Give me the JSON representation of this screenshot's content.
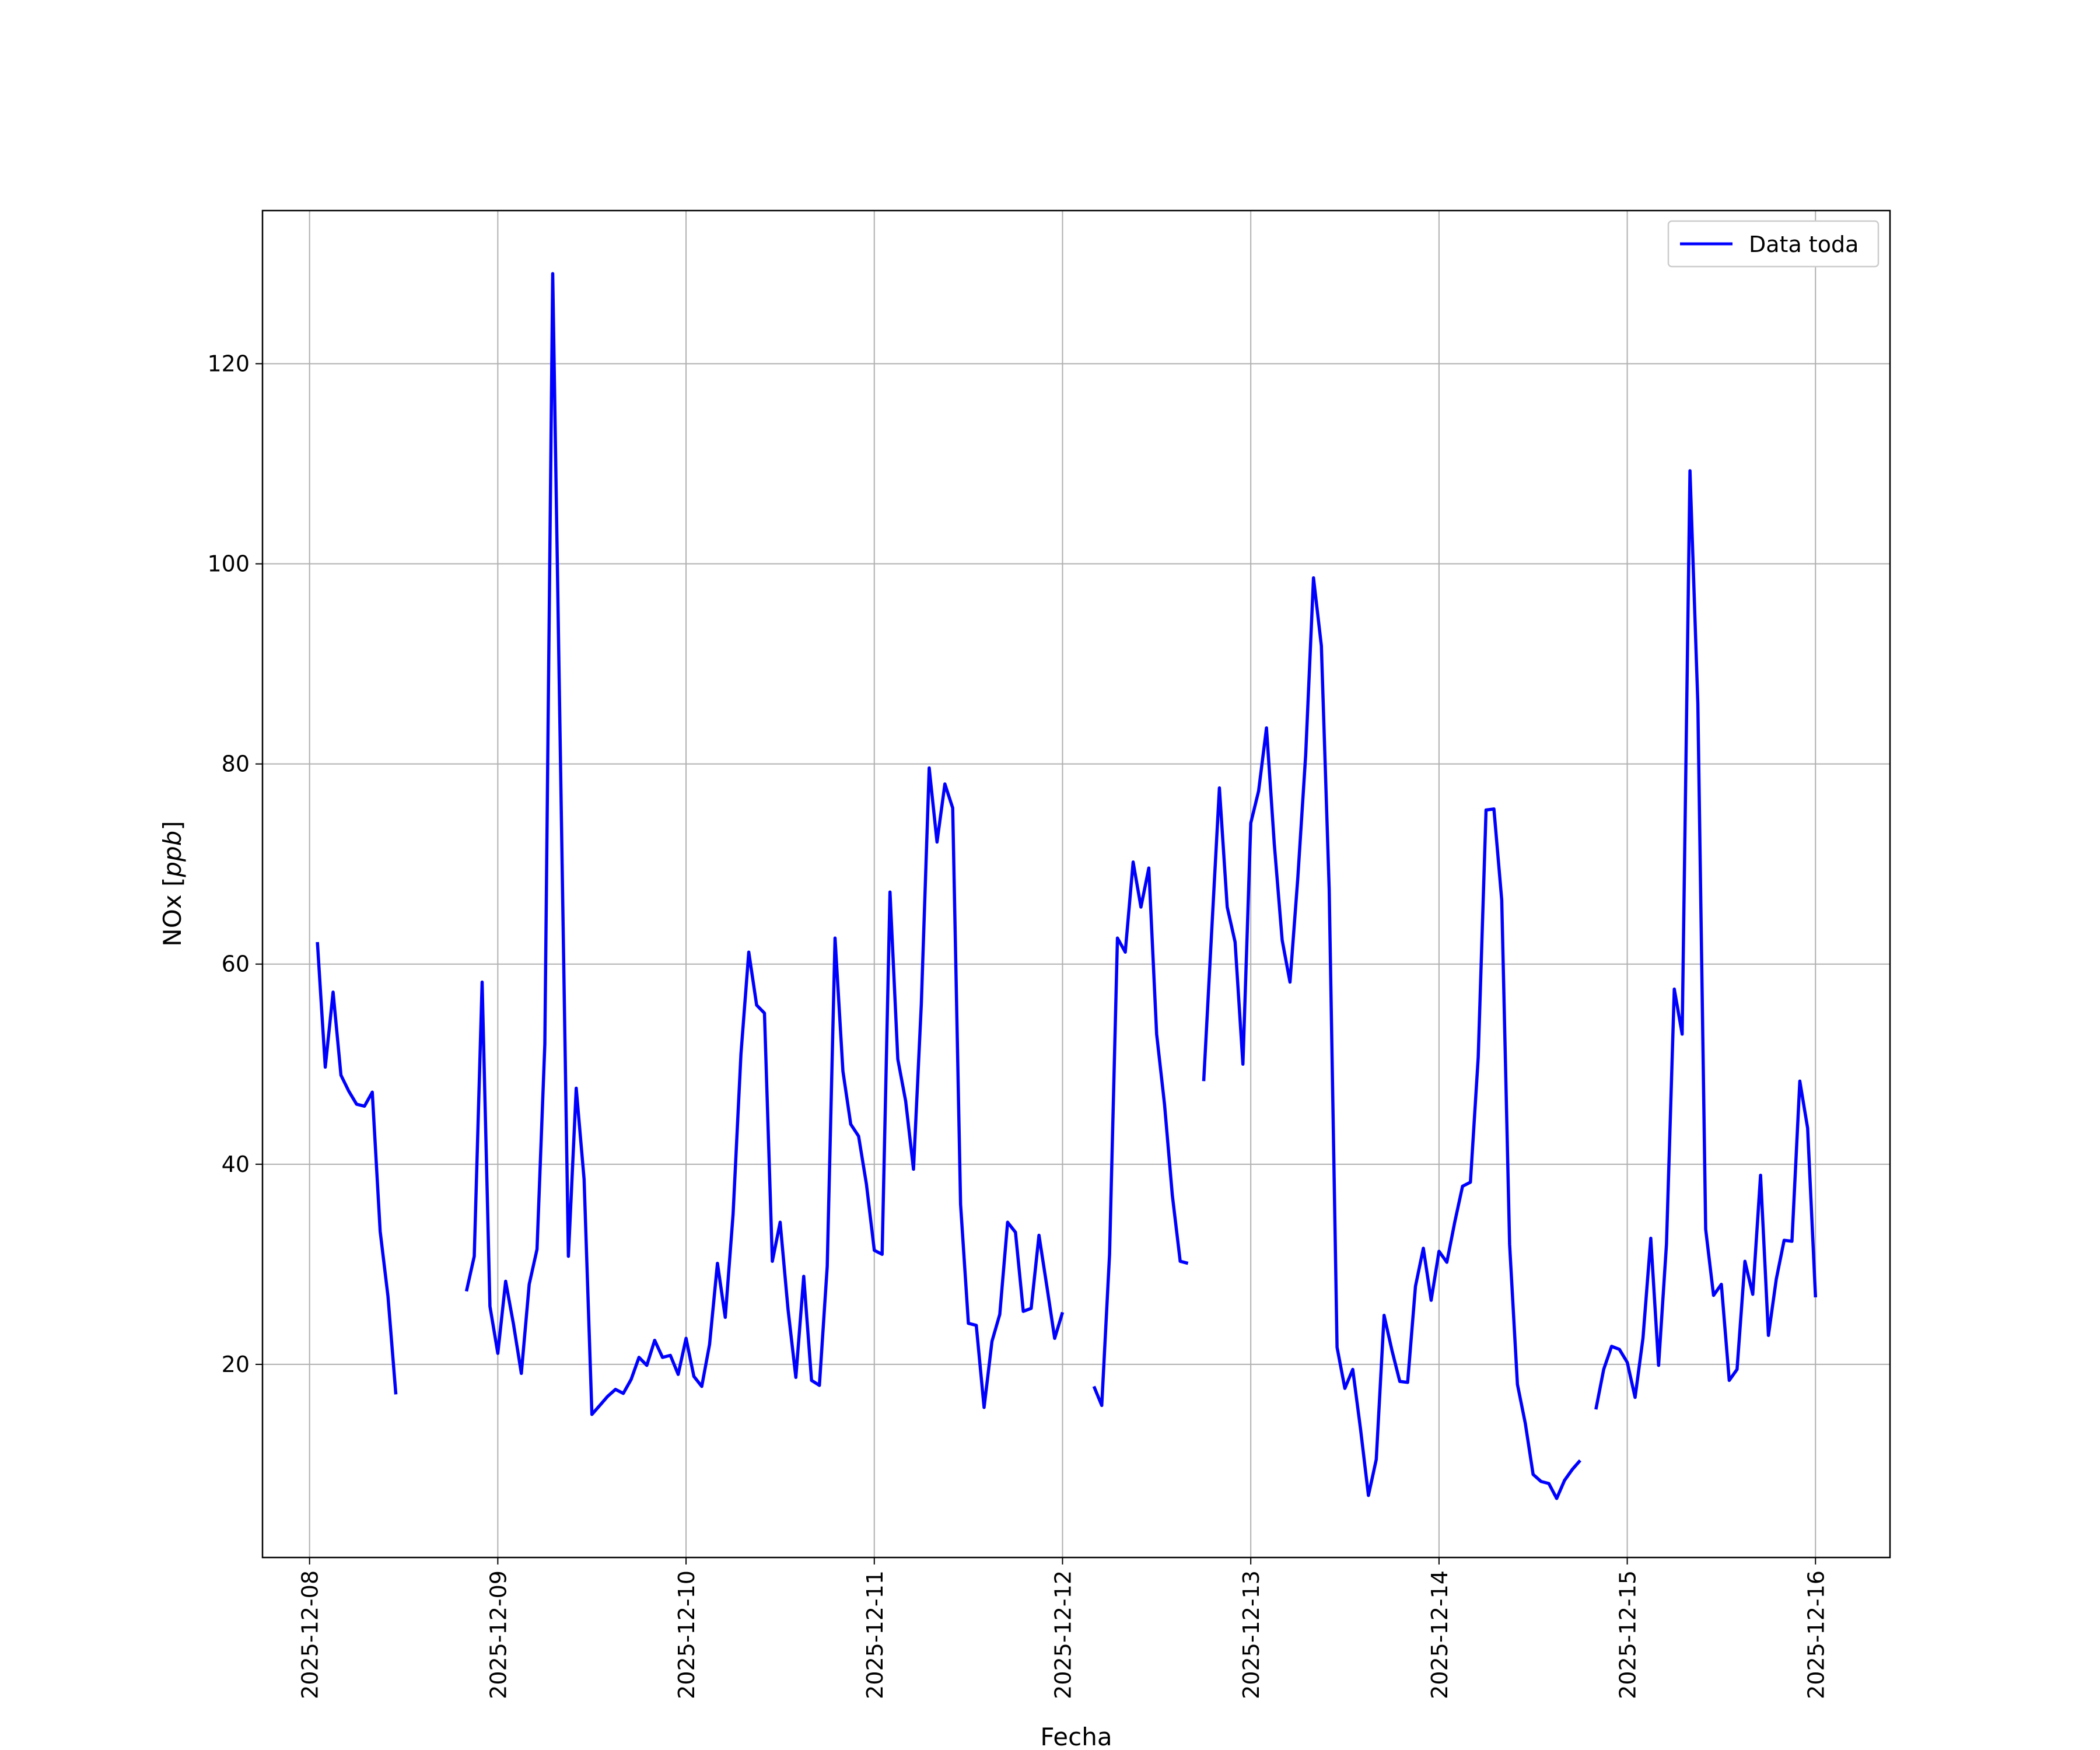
{
  "chart_data": {
    "type": "line",
    "title": "",
    "xlabel": "Fecha",
    "ylabel": "NOx [ppb]",
    "ylabel_parts": {
      "plain": "NOx [",
      "math": "ppb",
      "close": "]"
    },
    "x_ticks": [
      "2025-12-08",
      "2025-12-09",
      "2025-12-10",
      "2025-12-11",
      "2025-12-12",
      "2025-12-13",
      "2025-12-14",
      "2025-12-15",
      "2025-12-16"
    ],
    "y_ticks": [
      20,
      40,
      60,
      80,
      100,
      120
    ],
    "xlim": [
      "2025-12-07T18:00",
      "2025-12-16T09:30"
    ],
    "ylim": [
      0.7,
      135.3
    ],
    "grid": true,
    "legend_position": "upper right",
    "series": [
      {
        "name": "Data toda",
        "color": "#0000ff",
        "points": [
          [
            "2025-12-08T01:00",
            62.2
          ],
          [
            "2025-12-08T02:00",
            49.7
          ],
          [
            "2025-12-08T03:00",
            57.2
          ],
          [
            "2025-12-08T04:00",
            48.9
          ],
          [
            "2025-12-08T05:00",
            47.3
          ],
          [
            "2025-12-08T06:00",
            46.0
          ],
          [
            "2025-12-08T07:00",
            45.8
          ],
          [
            "2025-12-08T08:00",
            47.2
          ],
          [
            "2025-12-08T09:00",
            33.3
          ],
          [
            "2025-12-08T10:00",
            26.8
          ],
          [
            "2025-12-08T11:00",
            17.0
          ],
          [
            "2025-12-08T12:00",
            null
          ],
          [
            "2025-12-08T20:00",
            27.3
          ],
          [
            "2025-12-08T21:00",
            30.8
          ],
          [
            "2025-12-08T22:00",
            58.2
          ],
          [
            "2025-12-08T23:00",
            25.8
          ],
          [
            "2025-12-09T00:00",
            21.1
          ],
          [
            "2025-12-09T01:00",
            28.3
          ],
          [
            "2025-12-09T02:00",
            24.0
          ],
          [
            "2025-12-09T03:00",
            19.1
          ],
          [
            "2025-12-09T04:00",
            28.0
          ],
          [
            "2025-12-09T05:00",
            31.5
          ],
          [
            "2025-12-09T06:00",
            52.0
          ],
          [
            "2025-12-09T07:00",
            129.0
          ],
          [
            "2025-12-09T08:00",
            80.0
          ],
          [
            "2025-12-09T09:00",
            30.8
          ],
          [
            "2025-12-09T10:00",
            47.6
          ],
          [
            "2025-12-09T11:00",
            38.5
          ],
          [
            "2025-12-09T12:00",
            15.0
          ],
          [
            "2025-12-09T13:00",
            15.9
          ],
          [
            "2025-12-09T14:00",
            16.8
          ],
          [
            "2025-12-09T15:00",
            17.5
          ],
          [
            "2025-12-09T16:00",
            17.1
          ],
          [
            "2025-12-09T17:00",
            18.5
          ],
          [
            "2025-12-09T18:00",
            20.7
          ],
          [
            "2025-12-09T19:00",
            19.9
          ],
          [
            "2025-12-09T20:00",
            22.4
          ],
          [
            "2025-12-09T21:00",
            20.7
          ],
          [
            "2025-12-09T22:00",
            20.9
          ],
          [
            "2025-12-09T23:00",
            19.0
          ],
          [
            "2025-12-10T00:00",
            22.6
          ],
          [
            "2025-12-10T01:00",
            18.8
          ],
          [
            "2025-12-10T02:00",
            17.8
          ],
          [
            "2025-12-10T03:00",
            22.0
          ],
          [
            "2025-12-10T04:00",
            30.1
          ],
          [
            "2025-12-10T05:00",
            24.7
          ],
          [
            "2025-12-10T06:00",
            35.0
          ],
          [
            "2025-12-10T07:00",
            51.0
          ],
          [
            "2025-12-10T08:00",
            61.2
          ],
          [
            "2025-12-10T09:00",
            55.9
          ],
          [
            "2025-12-10T10:00",
            55.1
          ],
          [
            "2025-12-10T11:00",
            30.3
          ],
          [
            "2025-12-10T12:00",
            34.2
          ],
          [
            "2025-12-10T13:00",
            25.5
          ],
          [
            "2025-12-10T14:00",
            18.7
          ],
          [
            "2025-12-10T15:00",
            28.8
          ],
          [
            "2025-12-10T16:00",
            18.4
          ],
          [
            "2025-12-10T17:00",
            17.9
          ],
          [
            "2025-12-10T18:00",
            29.8
          ],
          [
            "2025-12-10T19:00",
            62.6
          ],
          [
            "2025-12-10T20:00",
            49.3
          ],
          [
            "2025-12-10T21:00",
            44.0
          ],
          [
            "2025-12-10T22:00",
            42.8
          ],
          [
            "2025-12-10T23:00",
            38.0
          ],
          [
            "2025-12-11T00:00",
            31.4
          ],
          [
            "2025-12-11T01:00",
            31.0
          ],
          [
            "2025-12-11T02:00",
            67.2
          ],
          [
            "2025-12-11T03:00",
            50.5
          ],
          [
            "2025-12-11T04:00",
            46.3
          ],
          [
            "2025-12-11T05:00",
            39.5
          ],
          [
            "2025-12-11T06:00",
            56.0
          ],
          [
            "2025-12-11T07:00",
            79.6
          ],
          [
            "2025-12-11T08:00",
            72.2
          ],
          [
            "2025-12-11T09:00",
            78.0
          ],
          [
            "2025-12-11T10:00",
            75.6
          ],
          [
            "2025-12-11T11:00",
            36.0
          ],
          [
            "2025-12-11T12:00",
            24.1
          ],
          [
            "2025-12-11T13:00",
            23.9
          ],
          [
            "2025-12-11T14:00",
            15.7
          ],
          [
            "2025-12-11T15:00",
            22.3
          ],
          [
            "2025-12-11T16:00",
            25.0
          ],
          [
            "2025-12-11T17:00",
            34.2
          ],
          [
            "2025-12-11T18:00",
            33.2
          ],
          [
            "2025-12-11T19:00",
            25.3
          ],
          [
            "2025-12-11T20:00",
            25.6
          ],
          [
            "2025-12-11T21:00",
            32.9
          ],
          [
            "2025-12-11T22:00",
            27.8
          ],
          [
            "2025-12-11T23:00",
            22.6
          ],
          [
            "2025-12-12T00:00",
            25.2
          ],
          [
            "2025-12-12T01:00",
            null
          ],
          [
            "2025-12-12T04:00",
            17.8
          ],
          [
            "2025-12-12T05:00",
            15.9
          ],
          [
            "2025-12-12T06:00",
            31.0
          ],
          [
            "2025-12-12T07:00",
            62.6
          ],
          [
            "2025-12-12T08:00",
            61.2
          ],
          [
            "2025-12-12T09:00",
            70.2
          ],
          [
            "2025-12-12T10:00",
            65.7
          ],
          [
            "2025-12-12T11:00",
            69.6
          ],
          [
            "2025-12-12T12:00",
            53.0
          ],
          [
            "2025-12-12T13:00",
            46.0
          ],
          [
            "2025-12-12T14:00",
            36.9
          ],
          [
            "2025-12-12T15:00",
            30.3
          ],
          [
            "2025-12-12T16:00",
            30.1
          ],
          [
            "2025-12-12T17:00",
            null
          ],
          [
            "2025-12-12T18:00",
            48.3
          ],
          [
            "2025-12-12T19:00",
            63.0
          ],
          [
            "2025-12-12T20:00",
            77.6
          ],
          [
            "2025-12-12T21:00",
            65.7
          ],
          [
            "2025-12-12T22:00",
            62.2
          ],
          [
            "2025-12-12T23:00",
            50.0
          ],
          [
            "2025-12-13T00:00",
            74.1
          ],
          [
            "2025-12-13T01:00",
            77.3
          ],
          [
            "2025-12-13T02:00",
            83.6
          ],
          [
            "2025-12-13T03:00",
            72.0
          ],
          [
            "2025-12-13T04:00",
            62.4
          ],
          [
            "2025-12-13T05:00",
            58.2
          ],
          [
            "2025-12-13T06:00",
            68.6
          ],
          [
            "2025-12-13T07:00",
            80.9
          ],
          [
            "2025-12-13T08:00",
            98.6
          ],
          [
            "2025-12-13T09:00",
            91.8
          ],
          [
            "2025-12-13T10:00",
            67.5
          ],
          [
            "2025-12-13T11:00",
            21.7
          ],
          [
            "2025-12-13T12:00",
            17.6
          ],
          [
            "2025-12-13T13:00",
            19.5
          ],
          [
            "2025-12-13T14:00",
            13.5
          ],
          [
            "2025-12-13T15:00",
            6.9
          ],
          [
            "2025-12-13T16:00",
            10.5
          ],
          [
            "2025-12-13T17:00",
            24.9
          ],
          [
            "2025-12-13T18:00",
            21.4
          ],
          [
            "2025-12-13T19:00",
            18.3
          ],
          [
            "2025-12-13T20:00",
            18.2
          ],
          [
            "2025-12-13T21:00",
            27.8
          ],
          [
            "2025-12-13T22:00",
            31.6
          ],
          [
            "2025-12-13T23:00",
            26.4
          ],
          [
            "2025-12-14T00:00",
            31.3
          ],
          [
            "2025-12-14T01:00",
            30.2
          ],
          [
            "2025-12-14T02:00",
            34.2
          ],
          [
            "2025-12-14T03:00",
            37.8
          ],
          [
            "2025-12-14T04:00",
            38.2
          ],
          [
            "2025-12-14T05:00",
            50.7
          ],
          [
            "2025-12-14T06:00",
            75.4
          ],
          [
            "2025-12-14T07:00",
            75.5
          ],
          [
            "2025-12-14T08:00",
            66.4
          ],
          [
            "2025-12-14T09:00",
            32.0
          ],
          [
            "2025-12-14T10:00",
            18.0
          ],
          [
            "2025-12-14T11:00",
            14.1
          ],
          [
            "2025-12-14T12:00",
            9.0
          ],
          [
            "2025-12-14T13:00",
            8.3
          ],
          [
            "2025-12-14T14:00",
            8.1
          ],
          [
            "2025-12-14T15:00",
            6.6
          ],
          [
            "2025-12-14T16:00",
            8.4
          ],
          [
            "2025-12-14T17:00",
            9.5
          ],
          [
            "2025-12-14T18:00",
            10.4
          ],
          [
            "2025-12-14T19:00",
            null
          ],
          [
            "2025-12-14T20:00",
            15.5
          ],
          [
            "2025-12-14T21:00",
            19.5
          ],
          [
            "2025-12-14T22:00",
            21.8
          ],
          [
            "2025-12-14T23:00",
            21.5
          ],
          [
            "2025-12-15T00:00",
            20.2
          ],
          [
            "2025-12-15T01:00",
            16.7
          ],
          [
            "2025-12-15T02:00",
            22.6
          ],
          [
            "2025-12-15T03:00",
            32.6
          ],
          [
            "2025-12-15T04:00",
            19.9
          ],
          [
            "2025-12-15T05:00",
            32.0
          ],
          [
            "2025-12-15T06:00",
            57.5
          ],
          [
            "2025-12-15T07:00",
            53.0
          ],
          [
            "2025-12-15T08:00",
            109.3
          ],
          [
            "2025-12-15T09:00",
            86.0
          ],
          [
            "2025-12-15T10:00",
            33.5
          ],
          [
            "2025-12-15T11:00",
            26.9
          ],
          [
            "2025-12-15T12:00",
            28.0
          ],
          [
            "2025-12-15T13:00",
            18.4
          ],
          [
            "2025-12-15T14:00",
            19.5
          ],
          [
            "2025-12-15T15:00",
            30.3
          ],
          [
            "2025-12-15T16:00",
            27.0
          ],
          [
            "2025-12-15T17:00",
            38.9
          ],
          [
            "2025-12-15T18:00",
            22.9
          ],
          [
            "2025-12-15T19:00",
            28.5
          ],
          [
            "2025-12-15T20:00",
            32.4
          ],
          [
            "2025-12-15T21:00",
            32.3
          ],
          [
            "2025-12-15T22:00",
            48.3
          ],
          [
            "2025-12-15T23:00",
            43.6
          ],
          [
            "2025-12-16T00:00",
            26.7
          ]
        ]
      }
    ]
  }
}
